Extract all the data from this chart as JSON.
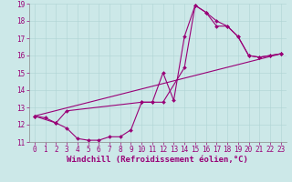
{
  "xlabel": "Windchill (Refroidissement éolien,°C)",
  "bg_color": "#cce8e8",
  "line_color": "#990077",
  "xlim": [
    -0.5,
    23.5
  ],
  "ylim": [
    11,
    19
  ],
  "xtick_labels": [
    "0",
    "1",
    "2",
    "3",
    "4",
    "5",
    "6",
    "7",
    "8",
    "9",
    "10",
    "11",
    "12",
    "13",
    "14",
    "15",
    "16",
    "17",
    "18",
    "19",
    "20",
    "21",
    "22",
    "23"
  ],
  "xtick_vals": [
    0,
    1,
    2,
    3,
    4,
    5,
    6,
    7,
    8,
    9,
    10,
    11,
    12,
    13,
    14,
    15,
    16,
    17,
    18,
    19,
    20,
    21,
    22,
    23
  ],
  "ytick_vals": [
    11,
    12,
    13,
    14,
    15,
    16,
    17,
    18,
    19
  ],
  "line1_x": [
    0,
    1,
    2,
    3,
    4,
    5,
    6,
    7,
    8,
    9,
    10,
    11,
    12,
    13,
    14,
    15,
    16,
    17,
    18,
    19,
    20,
    21,
    22,
    23
  ],
  "line1_y": [
    12.5,
    12.4,
    12.1,
    11.8,
    11.2,
    11.1,
    11.1,
    11.3,
    11.3,
    11.7,
    13.3,
    13.3,
    15.0,
    13.4,
    17.1,
    18.9,
    18.5,
    18.0,
    17.7,
    17.1,
    16.0,
    15.9,
    16.0,
    16.1
  ],
  "line2_x": [
    0,
    2,
    3,
    10,
    11,
    12,
    14,
    15,
    16,
    17,
    18,
    19,
    20,
    21,
    22,
    23
  ],
  "line2_y": [
    12.5,
    12.1,
    12.8,
    13.3,
    13.3,
    13.3,
    15.3,
    18.9,
    18.5,
    17.7,
    17.7,
    17.1,
    16.0,
    15.9,
    16.0,
    16.1
  ],
  "line3_x": [
    0,
    23
  ],
  "line3_y": [
    12.5,
    16.1
  ],
  "grid_color": "#aed4d4",
  "tick_fontsize": 5.5,
  "xlabel_fontsize": 6.5,
  "lw": 0.8,
  "ms": 2.0
}
